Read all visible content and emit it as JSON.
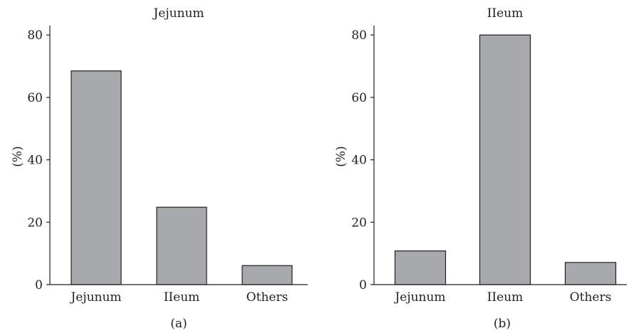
{
  "chart_data": [
    {
      "type": "bar",
      "title": "Jejunum",
      "ylabel": "(%)",
      "xlabel": "",
      "panel_label": "(a)",
      "categories": [
        "Jejunum",
        "IIeum",
        "Others"
      ],
      "values": [
        68.5,
        24.8,
        6.1
      ],
      "ylim": [
        0,
        83
      ],
      "yticks": [
        0,
        20,
        40,
        60,
        80
      ],
      "bar_color": "#a7a9ac",
      "grid": false
    },
    {
      "type": "bar",
      "title": "IIeum",
      "ylabel": "(%)",
      "xlabel": "",
      "panel_label": "(b)",
      "categories": [
        "Jejunum",
        "IIeum",
        "Others"
      ],
      "values": [
        10.8,
        80.0,
        7.1
      ],
      "ylim": [
        0,
        83
      ],
      "yticks": [
        0,
        20,
        40,
        60,
        80
      ],
      "bar_color": "#a7a9ac",
      "grid": false
    }
  ]
}
